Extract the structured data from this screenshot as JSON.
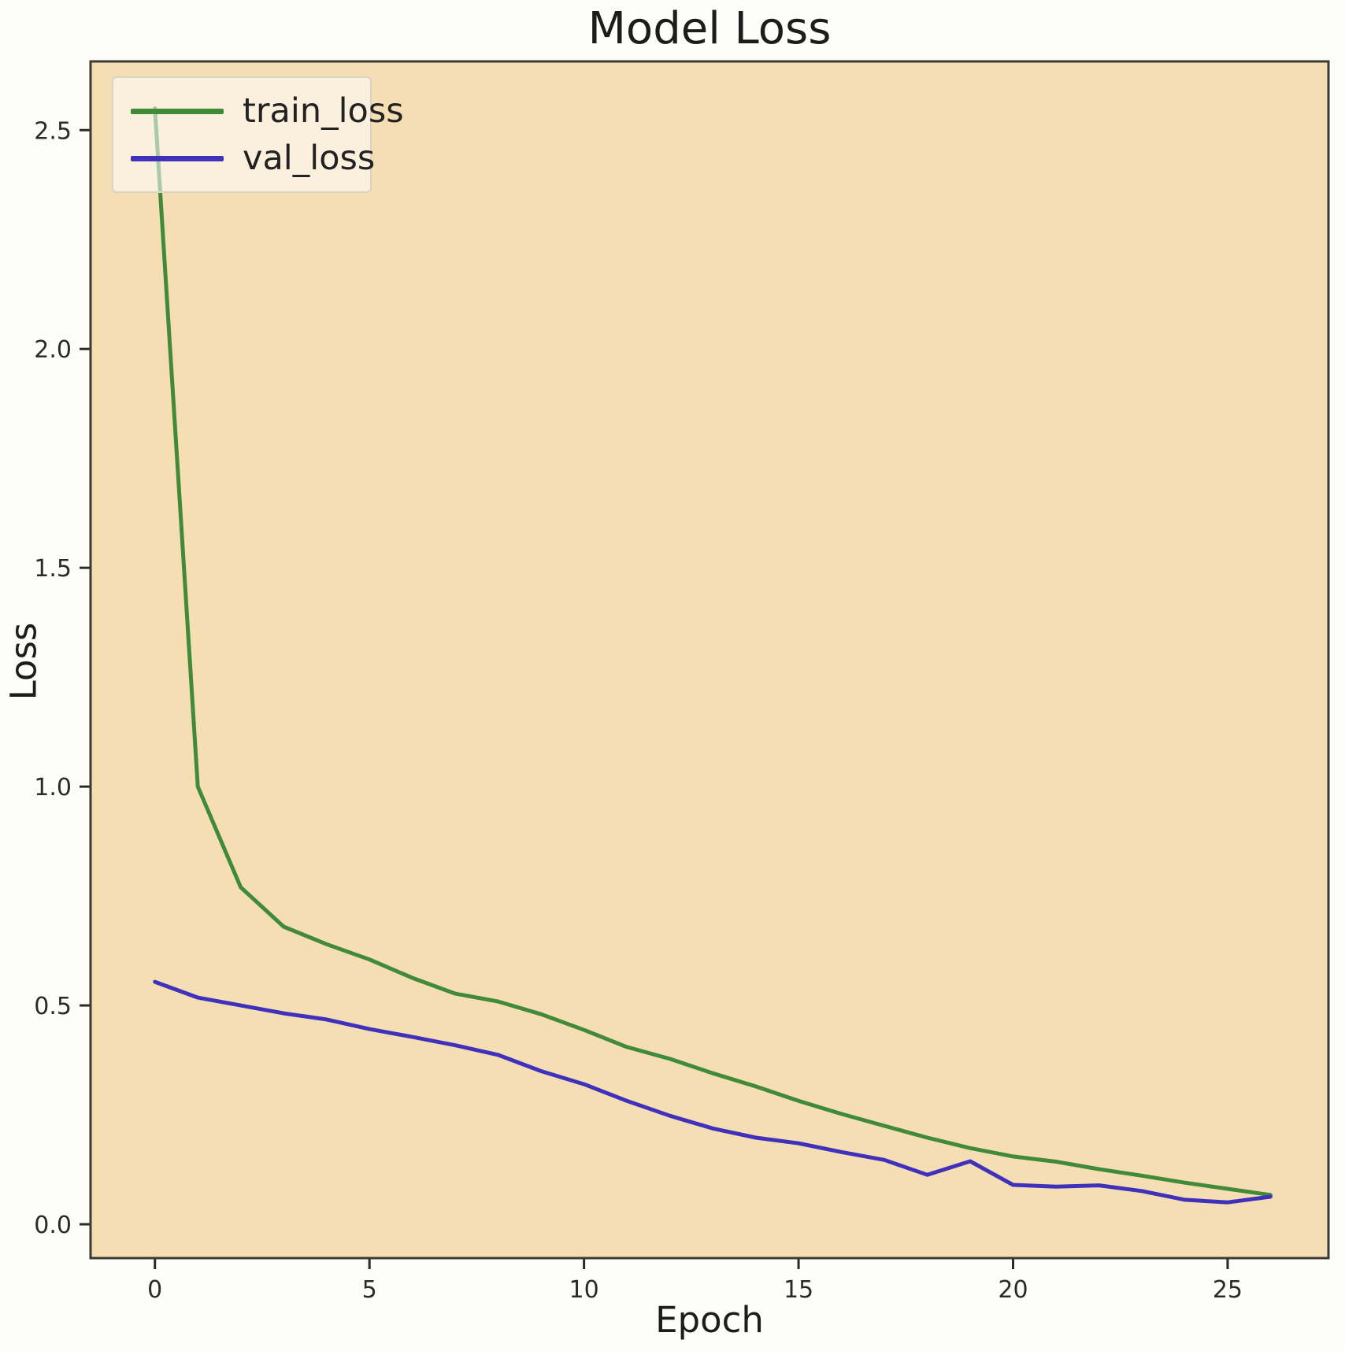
{
  "title": "Model Loss",
  "legend": {
    "items": [
      {
        "label": "train_loss",
        "color": "#418a3a"
      },
      {
        "label": "val_loss",
        "color": "#4031bd"
      }
    ]
  },
  "chart_data": {
    "type": "line",
    "title": "Model Loss",
    "xlabel": "Epoch",
    "ylabel": "Loss",
    "x": [
      0,
      1,
      2,
      3,
      4,
      5,
      6,
      7,
      8,
      9,
      10,
      11,
      12,
      13,
      14,
      15,
      16,
      17,
      18,
      19,
      20,
      21,
      22,
      23,
      24,
      25,
      26
    ],
    "series": [
      {
        "name": "train_loss",
        "color": "#418a3a",
        "values": [
          2.55,
          1.0,
          0.77,
          0.68,
          0.64,
          0.605,
          0.563,
          0.527,
          0.509,
          0.48,
          0.444,
          0.405,
          0.378,
          0.345,
          0.315,
          0.282,
          0.252,
          0.225,
          0.198,
          0.174,
          0.155,
          0.143,
          0.126,
          0.111,
          0.095,
          0.081,
          0.067
        ]
      },
      {
        "name": "val_loss",
        "color": "#4031bd",
        "values": [
          0.554,
          0.518,
          0.5,
          0.482,
          0.468,
          0.446,
          0.428,
          0.409,
          0.387,
          0.35,
          0.32,
          0.282,
          0.248,
          0.219,
          0.198,
          0.185,
          0.165,
          0.147,
          0.113,
          0.144,
          0.09,
          0.086,
          0.089,
          0.076,
          0.056,
          0.05,
          0.063
        ]
      }
    ],
    "x_ticks": [
      "0",
      "5",
      "10",
      "15",
      "20",
      "25"
    ],
    "y_ticks": [
      "0.0",
      "0.5",
      "1.0",
      "1.5",
      "2.0",
      "2.5"
    ],
    "xlim": [
      -1.5,
      27.35
    ],
    "ylim": [
      -0.0773,
      2.657
    ],
    "grid": false,
    "legend_position": "upper left",
    "plot_bg": "#f5deb3",
    "fig_bg": "#fcfcf9",
    "spine_color": "#3c3a33",
    "tick_color": "#2a2a2a"
  }
}
